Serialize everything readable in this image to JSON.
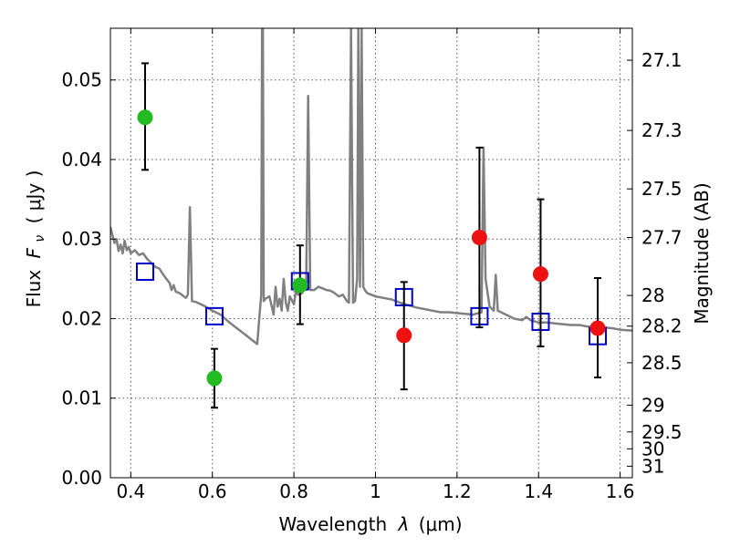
{
  "chart_data": {
    "type": "scatter",
    "xlabel": "Wavelength",
    "xlabel_symbol": "λ",
    "xlabel_unit": "(μm)",
    "ylabel": "Flux",
    "ylabel_symbol": "F",
    "ylabel_sub": "ν",
    "ylabel_unit": "( μJy )",
    "y2label": "Magnitude (AB)",
    "xlim": [
      0.35,
      1.63
    ],
    "ylim": [
      0.0,
      0.0565
    ],
    "grid": true,
    "x_ticks": [
      0.4,
      0.6,
      0.8,
      1.0,
      1.2,
      1.4,
      1.6
    ],
    "x_tick_labels": [
      "0.4",
      "0.6",
      "0.8",
      "1",
      "1.2",
      "1.4",
      "1.6"
    ],
    "y_ticks": [
      0.0,
      0.01,
      0.02,
      0.03,
      0.04,
      0.05
    ],
    "y_tick_labels": [
      "0.00",
      "0.01",
      "0.02",
      "0.03",
      "0.04",
      "0.05"
    ],
    "y2_ticks": [
      {
        "mag": 27.1,
        "label": "27.1"
      },
      {
        "mag": 27.3,
        "label": "27.3"
      },
      {
        "mag": 27.5,
        "label": "27.5"
      },
      {
        "mag": 27.7,
        "label": "27.7"
      },
      {
        "mag": 28.0,
        "label": "28"
      },
      {
        "mag": 28.2,
        "label": "28.2"
      },
      {
        "mag": 28.5,
        "label": "28.5"
      },
      {
        "mag": 29.0,
        "label": "29"
      },
      {
        "mag": 29.5,
        "label": "29.5"
      },
      {
        "mag": 30.0,
        "label": "30"
      },
      {
        "mag": 31.0,
        "label": "31"
      }
    ],
    "series": [
      {
        "kind": "line",
        "color": "#808080",
        "points": [
          [
            0.35,
            0.0315
          ],
          [
            0.355,
            0.0305
          ],
          [
            0.36,
            0.0295
          ],
          [
            0.365,
            0.03
          ],
          [
            0.37,
            0.0285
          ],
          [
            0.375,
            0.0293
          ],
          [
            0.38,
            0.0282
          ],
          [
            0.385,
            0.0298
          ],
          [
            0.39,
            0.0286
          ],
          [
            0.395,
            0.029
          ],
          [
            0.4,
            0.0282
          ],
          [
            0.41,
            0.0286
          ],
          [
            0.42,
            0.028
          ],
          [
            0.43,
            0.0282
          ],
          [
            0.44,
            0.0275
          ],
          [
            0.45,
            0.027
          ],
          [
            0.46,
            0.0265
          ],
          [
            0.47,
            0.0263
          ],
          [
            0.48,
            0.0255
          ],
          [
            0.49,
            0.0248
          ],
          [
            0.495,
            0.0245
          ],
          [
            0.5,
            0.0236
          ],
          [
            0.505,
            0.0242
          ],
          [
            0.51,
            0.0234
          ],
          [
            0.52,
            0.0232
          ],
          [
            0.53,
            0.0228
          ],
          [
            0.535,
            0.0226
          ],
          [
            0.54,
            0.023
          ],
          [
            0.545,
            0.034
          ],
          [
            0.55,
            0.0222
          ],
          [
            0.56,
            0.0221
          ],
          [
            0.58,
            0.0216
          ],
          [
            0.6,
            0.021
          ],
          [
            0.62,
            0.0205
          ],
          [
            0.64,
            0.0196
          ],
          [
            0.66,
            0.0188
          ],
          [
            0.68,
            0.018
          ],
          [
            0.7,
            0.0172
          ],
          [
            0.71,
            0.0168
          ],
          [
            0.715,
            0.02
          ],
          [
            0.72,
            0.023
          ],
          [
            0.722,
            0.0565
          ],
          [
            0.724,
            0.0565
          ],
          [
            0.726,
            0.0222
          ],
          [
            0.73,
            0.0225
          ],
          [
            0.74,
            0.0228
          ],
          [
            0.75,
            0.0205
          ],
          [
            0.755,
            0.024
          ],
          [
            0.76,
            0.0215
          ],
          [
            0.765,
            0.0225
          ],
          [
            0.77,
            0.021
          ],
          [
            0.775,
            0.025
          ],
          [
            0.78,
            0.022
          ],
          [
            0.785,
            0.021
          ],
          [
            0.79,
            0.0228
          ],
          [
            0.8,
            0.0218
          ],
          [
            0.805,
            0.0235
          ],
          [
            0.81,
            0.023
          ],
          [
            0.82,
            0.0232
          ],
          [
            0.825,
            0.0238
          ],
          [
            0.83,
            0.0236
          ],
          [
            0.835,
            0.048
          ],
          [
            0.84,
            0.0236
          ],
          [
            0.85,
            0.0236
          ],
          [
            0.86,
            0.024
          ],
          [
            0.87,
            0.0238
          ],
          [
            0.88,
            0.0236
          ],
          [
            0.89,
            0.0235
          ],
          [
            0.9,
            0.0232
          ],
          [
            0.91,
            0.0228
          ],
          [
            0.92,
            0.023
          ],
          [
            0.93,
            0.0222
          ],
          [
            0.935,
            0.022
          ],
          [
            0.94,
            0.0565
          ],
          [
            0.945,
            0.022
          ],
          [
            0.95,
            0.0222
          ],
          [
            0.955,
            0.025
          ],
          [
            0.958,
            0.0565
          ],
          [
            0.962,
            0.024
          ],
          [
            0.966,
            0.0565
          ],
          [
            0.97,
            0.024
          ],
          [
            0.975,
            0.0235
          ],
          [
            0.98,
            0.0232
          ],
          [
            1.0,
            0.0228
          ],
          [
            1.02,
            0.0226
          ],
          [
            1.04,
            0.0224
          ],
          [
            1.06,
            0.022
          ],
          [
            1.08,
            0.0217
          ],
          [
            1.1,
            0.0214
          ],
          [
            1.12,
            0.0212
          ],
          [
            1.14,
            0.021
          ],
          [
            1.16,
            0.0208
          ],
          [
            1.18,
            0.0208
          ],
          [
            1.2,
            0.0207
          ],
          [
            1.22,
            0.0206
          ],
          [
            1.24,
            0.0205
          ],
          [
            1.26,
            0.0208
          ],
          [
            1.265,
            0.0415
          ],
          [
            1.27,
            0.025
          ],
          [
            1.28,
            0.0215
          ],
          [
            1.29,
            0.021
          ],
          [
            1.295,
            0.0255
          ],
          [
            1.3,
            0.021
          ],
          [
            1.32,
            0.0205
          ],
          [
            1.34,
            0.02
          ],
          [
            1.36,
            0.0198
          ],
          [
            1.37,
            0.0202
          ],
          [
            1.38,
            0.0198
          ],
          [
            1.4,
            0.0195
          ],
          [
            1.42,
            0.0195
          ],
          [
            1.44,
            0.0194
          ],
          [
            1.46,
            0.0193
          ],
          [
            1.48,
            0.0192
          ],
          [
            1.5,
            0.0192
          ],
          [
            1.52,
            0.019
          ],
          [
            1.54,
            0.019
          ],
          [
            1.56,
            0.0189
          ],
          [
            1.58,
            0.0188
          ],
          [
            1.6,
            0.0186
          ],
          [
            1.63,
            0.0185
          ]
        ]
      },
      {
        "kind": "open-square",
        "color": "#0000cc",
        "points": [
          [
            0.435,
            0.0259
          ],
          [
            0.605,
            0.0203
          ],
          [
            0.815,
            0.0247
          ],
          [
            1.07,
            0.0227
          ],
          [
            1.255,
            0.0203
          ],
          [
            1.405,
            0.0196
          ],
          [
            1.545,
            0.0178
          ]
        ]
      },
      {
        "kind": "filled-circle",
        "color": "#22bb22",
        "points": [
          {
            "x": 0.435,
            "y": 0.0453,
            "ylo": 0.0387,
            "yhi": 0.0521
          },
          {
            "x": 0.605,
            "y": 0.0125,
            "ylo": 0.0088,
            "yhi": 0.0162
          },
          {
            "x": 0.815,
            "y": 0.0242,
            "ylo": 0.0193,
            "yhi": 0.0292
          }
        ]
      },
      {
        "kind": "filled-circle",
        "color": "#ee1111",
        "points": [
          {
            "x": 1.07,
            "y": 0.0179,
            "ylo": 0.0111,
            "yhi": 0.0246
          },
          {
            "x": 1.255,
            "y": 0.0302,
            "ylo": 0.0189,
            "yhi": 0.0415
          },
          {
            "x": 1.405,
            "y": 0.0256,
            "ylo": 0.0165,
            "yhi": 0.035
          },
          {
            "x": 1.545,
            "y": 0.0188,
            "ylo": 0.0126,
            "yhi": 0.0251
          }
        ]
      }
    ]
  }
}
